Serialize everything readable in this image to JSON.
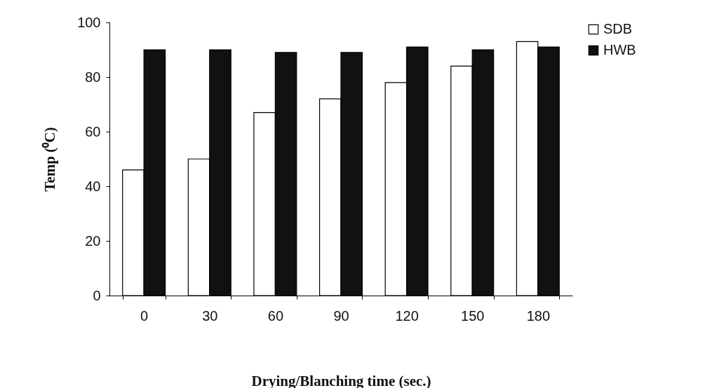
{
  "chart_data": {
    "type": "bar",
    "xlabel": "Drying/Blanching time (sec.)",
    "ylabel": "Temp (⁰C)",
    "categories": [
      "0",
      "30",
      "60",
      "90",
      "120",
      "150",
      "180"
    ],
    "series": [
      {
        "name": "SDB",
        "color": "#ffffff",
        "values": [
          46,
          50,
          67,
          72,
          78,
          84,
          93
        ]
      },
      {
        "name": "HWB",
        "color": "#111111",
        "values": [
          90,
          90,
          89,
          89,
          91,
          90,
          91
        ]
      }
    ],
    "ylim": [
      0,
      100
    ],
    "yticks": [
      0,
      20,
      40,
      60,
      80,
      100
    ],
    "grid": false,
    "legend": "right"
  }
}
